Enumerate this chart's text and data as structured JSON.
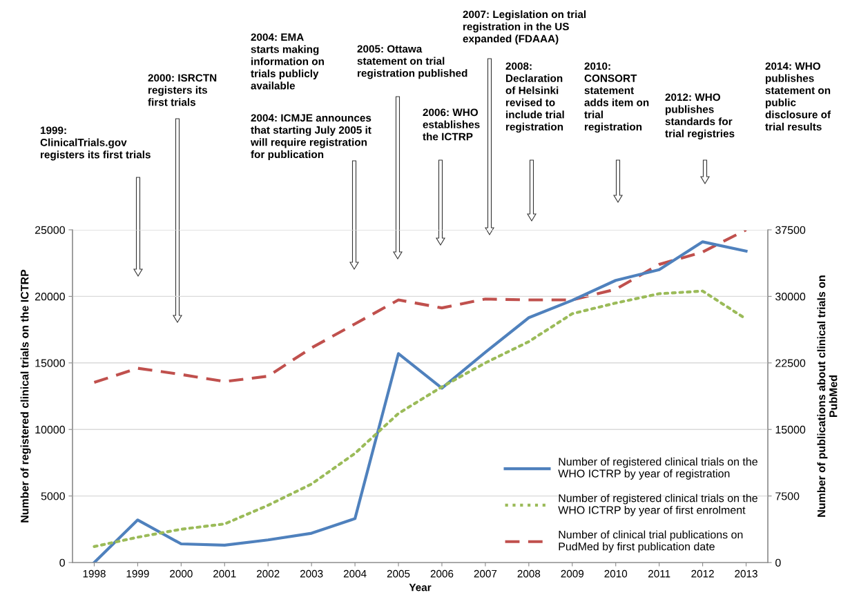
{
  "chart_data": {
    "type": "line",
    "xlabel": "Year",
    "ylabel": "Number of registered clinical trials on the ICTRP",
    "y2label": "Number of publications about clinical trials on\nPubMed",
    "categories": [
      "1998",
      "1999",
      "2000",
      "2001",
      "2002",
      "2003",
      "2004",
      "2005",
      "2006",
      "2007",
      "2008",
      "2009",
      "2010",
      "2011",
      "2012",
      "2013"
    ],
    "series": [
      {
        "name": "Number of registered clinical trials on the\nWHO ICTRP by year of registration",
        "color": "#4f81bd",
        "line_style": "solid",
        "values": [
          0,
          3200,
          1400,
          1300,
          1700,
          2200,
          3300,
          15700,
          13100,
          15800,
          18400,
          19700,
          21200,
          22000,
          24100,
          23400
        ]
      },
      {
        "name": "Number of registered clinical trials on the\nWHO ICTRP by year of first enrolment",
        "color": "#9bbb59",
        "line_style": "dotted",
        "values": [
          1200,
          1900,
          2500,
          2900,
          4300,
          5900,
          8200,
          11200,
          13200,
          15000,
          16600,
          18700,
          19500,
          20200,
          20400,
          18300
        ]
      },
      {
        "name": "Number of clinical trial publications on\nPudMed by first publication date",
        "color": "#c0504d",
        "line_style": "dashed",
        "axis": "y2",
        "values": [
          20300,
          21900,
          21200,
          20400,
          21000,
          24200,
          26900,
          29600,
          28700,
          29700,
          29600,
          29600,
          30800,
          33600,
          35000,
          37500
        ]
      }
    ],
    "ylim": [
      0,
      25000
    ],
    "yticks": [
      0,
      5000,
      10000,
      15000,
      20000,
      25000
    ],
    "y2lim": [
      0,
      37500
    ],
    "y2ticks": [
      0,
      7500,
      15000,
      22500,
      30000,
      37500
    ],
    "grid": "y",
    "legend": "bottom right",
    "marker": "none",
    "annotations": [
      "1999:\nClinicalTrials.gov\nregisters its first trials",
      "2000: ISRCTN\nregisters its\nfirst trials",
      "2004: EMA\nstarts making\ninformation on\ntrials publicly\navailable",
      "2004: ICMJE announces\nthat starting July 2005 it\nwill require registration\nfor publication",
      "2005: Ottawa\nstatement on trial\nregistration published",
      "2006: WHO\nestablishes\nthe ICTRP",
      "2007: Legislation on trial\nregistration in the US\nexpanded (FDAAA)",
      "2008:\nDeclaration\nof Helsinki\nrevised to\ninclude trial\nregistration",
      "2010:\nCONSORT\nstatement\nadds item on\ntrial\nregistration",
      "2012: WHO\npublishes\nstandards for\ntrial registries",
      "2014: WHO\npublishes\nstatement on\npublic\ndisclosure of\ntrial results"
    ]
  }
}
